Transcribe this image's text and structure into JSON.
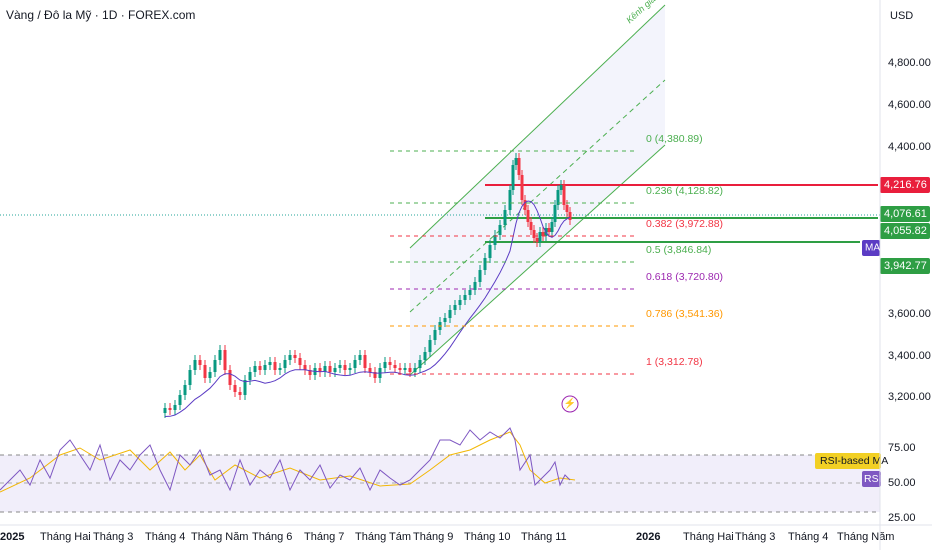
{
  "header": {
    "title": "Vàng / Đô la Mỹ · 1D · FOREX.com",
    "currency": "USD"
  },
  "channel_label": "Kênh giá (a)",
  "price_axis": [
    "4,800.00",
    "4,600.00",
    "4,400.00",
    "3,600.00",
    "3,400.00",
    "3,200.00"
  ],
  "fib_levels": [
    "0 (4,380.89)",
    "0.236 (4,128.82)",
    "0.382 (3,972.88)",
    "0.5 (3,846.84)",
    "0.618 (3,720.80)",
    "0.786 (3,541.36)",
    "1 (3,312.78)"
  ],
  "price_tags": [
    "4,216.76",
    "4,076.61",
    "4,055.82",
    "3,942.77"
  ],
  "ma_tag": "MA",
  "rsi": {
    "ma_label": "RSI-based MA",
    "label": "RSI",
    "axis": [
      "75.00",
      "50.00",
      "25.00"
    ]
  },
  "time_axis": [
    "2025",
    "Tháng Hai",
    "Tháng 3",
    "Tháng 4",
    "Tháng Năm",
    "Tháng 6",
    "Tháng 7",
    "Tháng Tám",
    "Tháng 9",
    "Tháng 10",
    "Tháng 11",
    "2026",
    "Tháng Hai",
    "Tháng 3",
    "Tháng 4",
    "Tháng Năm"
  ]
}
